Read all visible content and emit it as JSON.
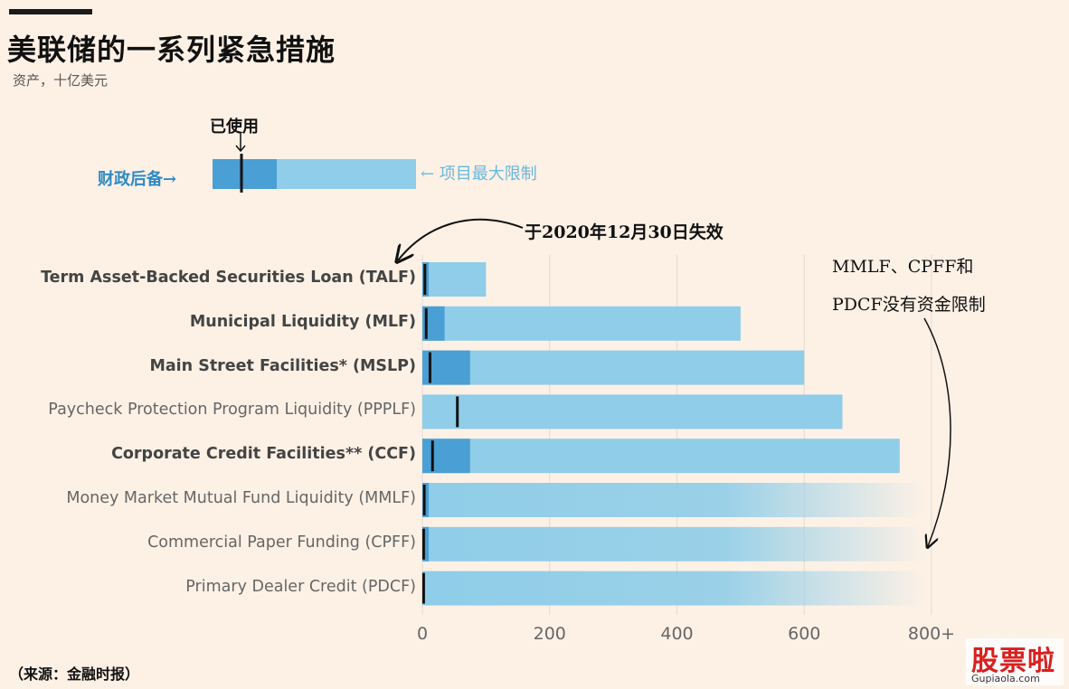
{
  "title": "美联储的一系列紧急措施",
  "subtitle": "资产，十亿美元",
  "source": "（来源：金融时报）",
  "legend": {
    "used": "已使用",
    "reserve": "财政后备→",
    "max": "← 项目最大限制"
  },
  "notes": {
    "talf": "于2020年12月30日失效",
    "unlimited_line1": "MMLF、CPFF和",
    "unlimited_line2": "PDCF没有资金限制"
  },
  "watermark": {
    "main": "股票啦",
    "url": "Gupiaola.com"
  },
  "colors": {
    "reserve": "#4a9fd4",
    "max": "#8fcde8",
    "used": "#111111",
    "grid": "#e6d9cc"
  },
  "chart_data": {
    "type": "bar",
    "orientation": "horizontal",
    "xlim": [
      0,
      800
    ],
    "x_ticks": [
      "0",
      "200",
      "400",
      "600",
      "800+"
    ],
    "x_tick_values": [
      0,
      200,
      400,
      600,
      800
    ],
    "categories": [
      "Term Asset-Backed Securities Loan (TALF)",
      "Municipal Liquidity (MLF)",
      "Main Street Facilities* (MSLP)",
      "Paycheck Protection Program Liquidity (PPPLF)",
      "Corporate Credit Facilities** (CCF)",
      "Money Market Mutual Fund Liquidity (MMLF)",
      "Commercial Paper Funding (CPFF)",
      "Primary Dealer Credit (PDCF)"
    ],
    "bold": [
      true,
      true,
      true,
      false,
      true,
      false,
      false,
      false
    ],
    "series": [
      {
        "name": "项目最大限制",
        "values": [
          100,
          500,
          600,
          660,
          750,
          null,
          null,
          null
        ]
      },
      {
        "name": "财政后备",
        "values": [
          10,
          35,
          75,
          0,
          75,
          10,
          10,
          0
        ]
      },
      {
        "name": "已使用",
        "values": [
          4,
          6,
          12,
          55,
          16,
          3,
          2,
          2
        ]
      }
    ],
    "unlimited": [
      false,
      false,
      false,
      false,
      false,
      true,
      true,
      true
    ]
  }
}
